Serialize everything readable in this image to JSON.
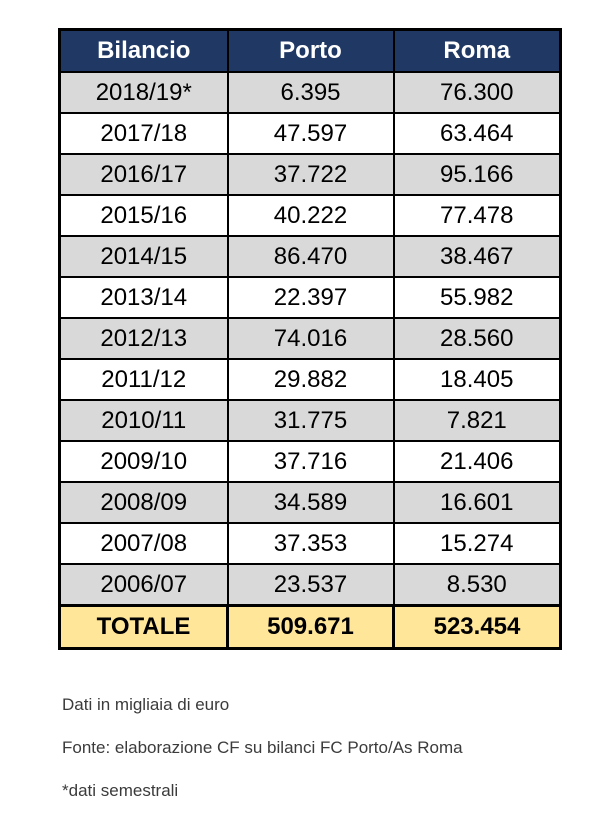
{
  "table": {
    "headers": [
      "Bilancio",
      "Porto",
      "Roma"
    ],
    "rows": [
      {
        "season": "2018/19*",
        "porto": "6.395",
        "roma": "76.300"
      },
      {
        "season": "2017/18",
        "porto": "47.597",
        "roma": "63.464"
      },
      {
        "season": "2016/17",
        "porto": "37.722",
        "roma": "95.166"
      },
      {
        "season": "2015/16",
        "porto": "40.222",
        "roma": "77.478"
      },
      {
        "season": "2014/15",
        "porto": "86.470",
        "roma": "38.467"
      },
      {
        "season": "2013/14",
        "porto": "22.397",
        "roma": "55.982"
      },
      {
        "season": "2012/13",
        "porto": "74.016",
        "roma": "28.560"
      },
      {
        "season": "2011/12",
        "porto": "29.882",
        "roma": "18.405"
      },
      {
        "season": "2010/11",
        "porto": "31.775",
        "roma": "7.821"
      },
      {
        "season": "2009/10",
        "porto": "37.716",
        "roma": "21.406"
      },
      {
        "season": "2008/09",
        "porto": "34.589",
        "roma": "16.601"
      },
      {
        "season": "2007/08",
        "porto": "37.353",
        "roma": "15.274"
      },
      {
        "season": "2006/07",
        "porto": "23.537",
        "roma": "8.530"
      }
    ],
    "total": {
      "label": "TOTALE",
      "porto": "509.671",
      "roma": "523.454"
    }
  },
  "footer": {
    "note_units": "Dati in migliaia di euro",
    "note_source": "Fonte: elaborazione CF su bilanci FC Porto/As Roma",
    "note_asterisk": "*dati semestrali"
  },
  "colors": {
    "header_bg": "#1F3864",
    "header_text": "#FFFFFF",
    "row_alt_bg": "#D9D9D9",
    "row_bg": "#FFFFFF",
    "total_bg": "#FFE699",
    "border": "#000000"
  },
  "chart_data": {
    "type": "table",
    "title": "Bilancio",
    "categories": [
      "2018/19*",
      "2017/18",
      "2016/17",
      "2015/16",
      "2014/15",
      "2013/14",
      "2012/13",
      "2011/12",
      "2010/11",
      "2009/10",
      "2008/09",
      "2007/08",
      "2006/07"
    ],
    "series": [
      {
        "name": "Porto",
        "values": [
          6395,
          47597,
          37722,
          40222,
          86470,
          22397,
          74016,
          29882,
          31775,
          37716,
          34589,
          37353,
          23537
        ],
        "total": 509671
      },
      {
        "name": "Roma",
        "values": [
          76300,
          63464,
          95166,
          77478,
          38467,
          55982,
          28560,
          18405,
          7821,
          21406,
          16601,
          15274,
          8530
        ],
        "total": 523454
      }
    ],
    "units": "thousands of euro",
    "notes": [
      "Dati in migliaia di euro",
      "Fonte: elaborazione CF su bilanci FC Porto/As Roma",
      "*dati semestrali"
    ]
  }
}
